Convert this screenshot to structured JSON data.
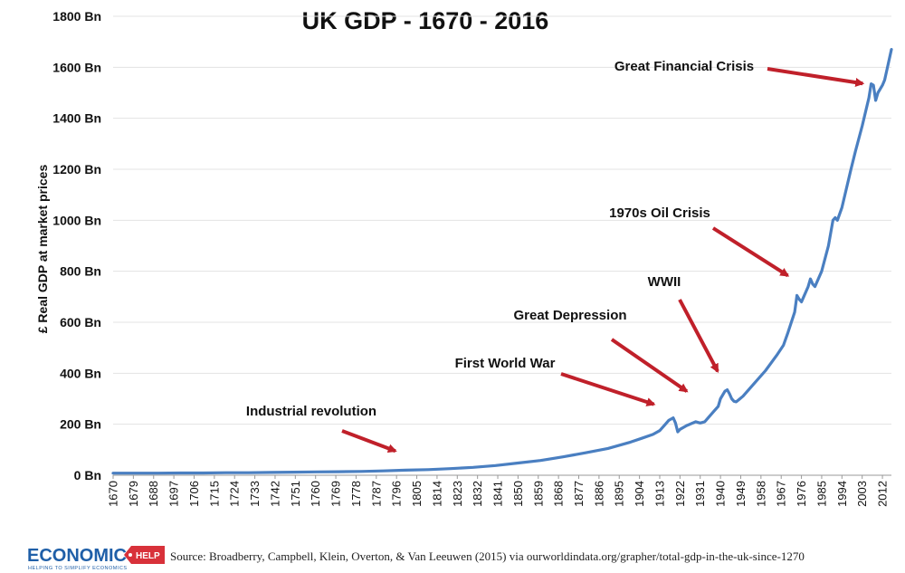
{
  "chart_data": {
    "type": "line",
    "title": "UK GDP - 1670 - 2016",
    "ylabel": "£    Real GDP at market prices",
    "xlabel": "",
    "ylim": [
      0,
      1800
    ],
    "xlim": [
      1670,
      2016
    ],
    "grid": true,
    "yticks": [
      "0 Bn",
      "200 Bn",
      "400 Bn",
      "600 Bn",
      "800 Bn",
      "1000 Bn",
      "1200 Bn",
      "1400 Bn",
      "1600 Bn",
      "1800 Bn"
    ],
    "xticks": [
      "1670",
      "1679",
      "1688",
      "1697",
      "1706",
      "1715",
      "1724",
      "1733",
      "1742",
      "1751",
      "1760",
      "1769",
      "1778",
      "1787",
      "1796",
      "1805",
      "1814",
      "1823",
      "1832",
      "1841",
      "1850",
      "1859",
      "1868",
      "1877",
      "1886",
      "1895",
      "1904",
      "1913",
      "1922",
      "1931",
      "1940",
      "1949",
      "1958",
      "1967",
      "1976",
      "1985",
      "1994",
      "2003",
      "2012"
    ],
    "color": "#4a7fc1",
    "series": [
      {
        "x": [
          1670,
          1680,
          1690,
          1700,
          1710,
          1720,
          1730,
          1740,
          1750,
          1760,
          1770,
          1780,
          1790,
          1800,
          1810,
          1820,
          1830,
          1840,
          1850,
          1860,
          1870,
          1880,
          1890,
          1900,
          1905,
          1910,
          1913,
          1915,
          1917,
          1918,
          1919,
          1920,
          1921,
          1922,
          1925,
          1929,
          1931,
          1933,
          1935,
          1937,
          1939,
          1940,
          1942,
          1943,
          1944,
          1945,
          1946,
          1947,
          1948,
          1950,
          1955,
          1960,
          1965,
          1968,
          1970,
          1973,
          1974,
          1975,
          1976,
          1977,
          1979,
          1980,
          1981,
          1982,
          1985,
          1988,
          1990,
          1991,
          1992,
          1994,
          1998,
          2000,
          2003,
          2006,
          2007,
          2008,
          2009,
          2010,
          2012,
          2013,
          2014,
          2015,
          2016
        ],
        "values": [
          8,
          8,
          8,
          9,
          9,
          10,
          10,
          11,
          12,
          13,
          14,
          15,
          17,
          20,
          22,
          26,
          31,
          38,
          48,
          58,
          72,
          88,
          105,
          130,
          145,
          160,
          175,
          195,
          215,
          220,
          225,
          205,
          170,
          180,
          195,
          210,
          205,
          210,
          230,
          250,
          270,
          300,
          330,
          335,
          320,
          300,
          290,
          288,
          295,
          310,
          360,
          410,
          470,
          510,
          560,
          640,
          705,
          690,
          680,
          700,
          740,
          770,
          750,
          740,
          800,
          900,
          1000,
          1010,
          1000,
          1050,
          1200,
          1270,
          1370,
          1480,
          1535,
          1530,
          1470,
          1500,
          1530,
          1550,
          1590,
          1630,
          1670
        ]
      }
    ],
    "annotations": [
      {
        "text": "Great Financial Crisis",
        "x": 2008,
        "y": 1530
      },
      {
        "text": "1970s Oil Crisis",
        "x": 1974,
        "y": 760
      },
      {
        "text": "WWII",
        "x": 1941,
        "y": 370
      },
      {
        "text": "Great Depression",
        "x": 1929,
        "y": 305
      },
      {
        "text": "First World War",
        "x": 1915,
        "y": 265
      },
      {
        "text": "Industrial revolution",
        "x": 1800,
        "y": 80
      }
    ]
  },
  "source": "Source: Broadberry, Campbell, Klein, Overton, & Van Leeuwen (2015) via ourworldindata.org/grapher/total-gdp-in-the-uk-since-1270",
  "logo": {
    "main": "ECONOMICS",
    "tag": "HELP",
    "subtitle": "HELPING TO SIMPLIFY ECONOMICS"
  }
}
